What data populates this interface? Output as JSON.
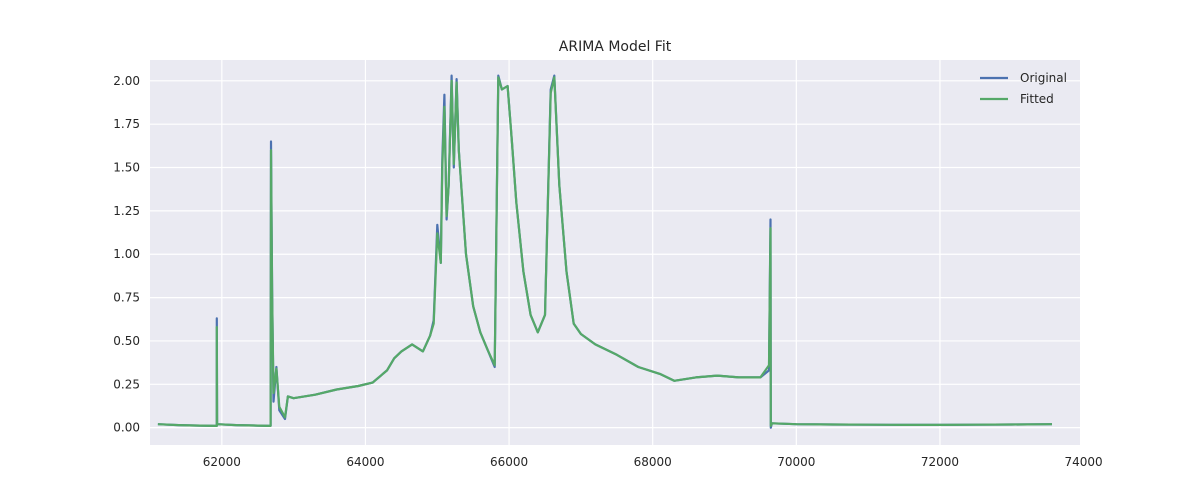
{
  "chart_data": {
    "type": "line",
    "title": "ARIMA Model Fit",
    "xlabel": "",
    "ylabel": "",
    "xlim": [
      61000,
      73950
    ],
    "ylim": [
      -0.1,
      2.12
    ],
    "x_ticks": [
      62000,
      64000,
      66000,
      68000,
      70000,
      72000,
      74000
    ],
    "y_ticks": [
      0.0,
      0.25,
      0.5,
      0.75,
      1.0,
      1.25,
      1.5,
      1.75,
      2.0
    ],
    "x_tick_labels": [
      "62000",
      "64000",
      "66000",
      "68000",
      "70000",
      "72000",
      "74000"
    ],
    "y_tick_labels": [
      "0.00",
      "0.25",
      "0.50",
      "0.75",
      "1.00",
      "1.25",
      "1.50",
      "1.75",
      "2.00"
    ],
    "grid": true,
    "legend_position": "top-right",
    "colors": {
      "background": "#eaeaf2",
      "grid": "#ffffff",
      "original": "#4c72b0",
      "fitted": "#55a868"
    },
    "series": [
      {
        "name": "Original",
        "points": [
          [
            61110,
            0.02
          ],
          [
            61400,
            0.015
          ],
          [
            61700,
            0.012
          ],
          [
            61930,
            0.01
          ],
          [
            61930,
            0.63
          ],
          [
            61935,
            0.02
          ],
          [
            62200,
            0.015
          ],
          [
            62500,
            0.012
          ],
          [
            62680,
            0.01
          ],
          [
            62685,
            1.65
          ],
          [
            62700,
            0.8
          ],
          [
            62720,
            0.15
          ],
          [
            62760,
            0.35
          ],
          [
            62800,
            0.1
          ],
          [
            62880,
            0.05
          ],
          [
            62920,
            0.18
          ],
          [
            63000,
            0.17
          ],
          [
            63300,
            0.19
          ],
          [
            63600,
            0.22
          ],
          [
            63900,
            0.24
          ],
          [
            64100,
            0.26
          ],
          [
            64300,
            0.33
          ],
          [
            64400,
            0.4
          ],
          [
            64500,
            0.44
          ],
          [
            64650,
            0.48
          ],
          [
            64800,
            0.44
          ],
          [
            64900,
            0.53
          ],
          [
            64950,
            0.62
          ],
          [
            65000,
            1.17
          ],
          [
            65050,
            0.95
          ],
          [
            65070,
            1.55
          ],
          [
            65100,
            1.92
          ],
          [
            65130,
            1.2
          ],
          [
            65160,
            1.4
          ],
          [
            65200,
            2.03
          ],
          [
            65230,
            1.5
          ],
          [
            65270,
            2.01
          ],
          [
            65300,
            1.6
          ],
          [
            65400,
            1.0
          ],
          [
            65500,
            0.7
          ],
          [
            65600,
            0.55
          ],
          [
            65700,
            0.45
          ],
          [
            65800,
            0.35
          ],
          [
            65850,
            2.03
          ],
          [
            65900,
            1.95
          ],
          [
            65980,
            1.97
          ],
          [
            66040,
            1.65
          ],
          [
            66100,
            1.3
          ],
          [
            66200,
            0.9
          ],
          [
            66300,
            0.65
          ],
          [
            66400,
            0.55
          ],
          [
            66500,
            0.65
          ],
          [
            66580,
            1.95
          ],
          [
            66630,
            2.03
          ],
          [
            66700,
            1.4
          ],
          [
            66800,
            0.9
          ],
          [
            66900,
            0.6
          ],
          [
            67000,
            0.54
          ],
          [
            67200,
            0.48
          ],
          [
            67500,
            0.42
          ],
          [
            67800,
            0.35
          ],
          [
            68100,
            0.31
          ],
          [
            68300,
            0.27
          ],
          [
            68600,
            0.29
          ],
          [
            68900,
            0.3
          ],
          [
            69200,
            0.29
          ],
          [
            69500,
            0.29
          ],
          [
            69620,
            0.33
          ],
          [
            69640,
            1.2
          ],
          [
            69645,
            0.0
          ],
          [
            69660,
            0.025
          ],
          [
            70000,
            0.02
          ],
          [
            70500,
            0.018
          ],
          [
            71000,
            0.017
          ],
          [
            71500,
            0.016
          ],
          [
            72000,
            0.016
          ],
          [
            72500,
            0.017
          ],
          [
            73000,
            0.018
          ],
          [
            73560,
            0.02
          ]
        ]
      },
      {
        "name": "Fitted",
        "points": [
          [
            61110,
            0.02
          ],
          [
            61400,
            0.015
          ],
          [
            61700,
            0.012
          ],
          [
            61930,
            0.01
          ],
          [
            61930,
            0.58
          ],
          [
            61935,
            0.02
          ],
          [
            62200,
            0.015
          ],
          [
            62500,
            0.012
          ],
          [
            62680,
            0.01
          ],
          [
            62685,
            1.6
          ],
          [
            62700,
            0.78
          ],
          [
            62720,
            0.2
          ],
          [
            62760,
            0.34
          ],
          [
            62800,
            0.12
          ],
          [
            62880,
            0.06
          ],
          [
            62920,
            0.18
          ],
          [
            63000,
            0.17
          ],
          [
            63300,
            0.19
          ],
          [
            63600,
            0.22
          ],
          [
            63900,
            0.24
          ],
          [
            64100,
            0.26
          ],
          [
            64300,
            0.33
          ],
          [
            64400,
            0.4
          ],
          [
            64500,
            0.44
          ],
          [
            64650,
            0.48
          ],
          [
            64800,
            0.44
          ],
          [
            64900,
            0.53
          ],
          [
            64950,
            0.6
          ],
          [
            65000,
            1.12
          ],
          [
            65050,
            0.95
          ],
          [
            65070,
            1.5
          ],
          [
            65100,
            1.85
          ],
          [
            65130,
            1.22
          ],
          [
            65160,
            1.4
          ],
          [
            65200,
            2.0
          ],
          [
            65230,
            1.52
          ],
          [
            65270,
            1.99
          ],
          [
            65300,
            1.6
          ],
          [
            65400,
            1.0
          ],
          [
            65500,
            0.7
          ],
          [
            65600,
            0.55
          ],
          [
            65700,
            0.45
          ],
          [
            65800,
            0.36
          ],
          [
            65850,
            2.02
          ],
          [
            65900,
            1.95
          ],
          [
            65980,
            1.97
          ],
          [
            66040,
            1.65
          ],
          [
            66100,
            1.3
          ],
          [
            66200,
            0.9
          ],
          [
            66300,
            0.65
          ],
          [
            66400,
            0.55
          ],
          [
            66500,
            0.65
          ],
          [
            66580,
            1.93
          ],
          [
            66630,
            2.02
          ],
          [
            66700,
            1.4
          ],
          [
            66800,
            0.9
          ],
          [
            66900,
            0.6
          ],
          [
            67000,
            0.54
          ],
          [
            67200,
            0.48
          ],
          [
            67500,
            0.42
          ],
          [
            67800,
            0.35
          ],
          [
            68100,
            0.31
          ],
          [
            68300,
            0.27
          ],
          [
            68600,
            0.29
          ],
          [
            68900,
            0.3
          ],
          [
            69200,
            0.29
          ],
          [
            69500,
            0.29
          ],
          [
            69620,
            0.36
          ],
          [
            69640,
            1.15
          ],
          [
            69645,
            0.01
          ],
          [
            69660,
            0.025
          ],
          [
            70000,
            0.02
          ],
          [
            70500,
            0.018
          ],
          [
            71000,
            0.017
          ],
          [
            71500,
            0.016
          ],
          [
            72000,
            0.016
          ],
          [
            72500,
            0.017
          ],
          [
            73000,
            0.018
          ],
          [
            73560,
            0.02
          ]
        ]
      }
    ]
  }
}
